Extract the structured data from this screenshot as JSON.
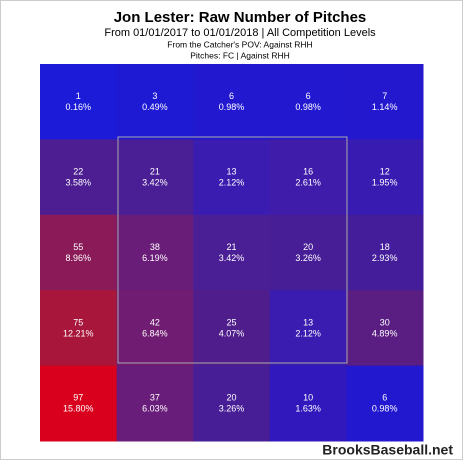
{
  "chart_data": {
    "type": "heatmap",
    "title": "Jon Lester: Raw Number of Pitches",
    "subtitle": "From 01/01/2017 to 01/01/2018 | All Competition Levels",
    "notes": [
      "From the Catcher's POV:  Against RHH",
      "Pitches: FC  |  Against RHH"
    ],
    "source": "BrooksBaseball.net",
    "counts": [
      [
        1,
        3,
        6,
        6,
        7
      ],
      [
        22,
        21,
        13,
        16,
        12
      ],
      [
        55,
        38,
        21,
        20,
        18
      ],
      [
        75,
        42,
        25,
        13,
        30
      ],
      [
        97,
        37,
        20,
        10,
        6
      ]
    ],
    "percents": [
      [
        0.16,
        0.49,
        0.98,
        0.98,
        1.14
      ],
      [
        3.58,
        3.42,
        2.12,
        2.61,
        1.95
      ],
      [
        8.96,
        6.19,
        3.42,
        3.26,
        2.93
      ],
      [
        12.21,
        6.84,
        4.07,
        2.12,
        4.89
      ],
      [
        15.8,
        6.03,
        3.26,
        1.63,
        0.98
      ]
    ],
    "percent_labels": [
      [
        "0.16%",
        "0.49%",
        "0.98%",
        "0.98%",
        "1.14%"
      ],
      [
        "3.58%",
        "3.42%",
        "2.12%",
        "2.61%",
        "1.95%"
      ],
      [
        "8.96%",
        "6.19%",
        "3.42%",
        "3.26%",
        "2.93%"
      ],
      [
        "12.21%",
        "6.84%",
        "4.07%",
        "2.12%",
        "4.89%"
      ],
      [
        "15.80%",
        "6.03%",
        "3.26%",
        "1.63%",
        "0.98%"
      ]
    ],
    "colors": [
      [
        "#1c1cd8",
        "#1e1ad4",
        "#2218d0",
        "#2218d0",
        "#2418ce"
      ],
      [
        "#4c1e92",
        "#4a1e94",
        "#3a1cb0",
        "#401caa",
        "#381cb2"
      ],
      [
        "#8a1a58",
        "#6a1d78",
        "#4a1e94",
        "#481e96",
        "#441e9a"
      ],
      [
        "#a8163c",
        "#701c72",
        "#501e8c",
        "#3a1cb0",
        "#5a1d82"
      ],
      [
        "#d8001c",
        "#681d7a",
        "#481e96",
        "#3018bc",
        "#2218d0"
      ]
    ]
  }
}
